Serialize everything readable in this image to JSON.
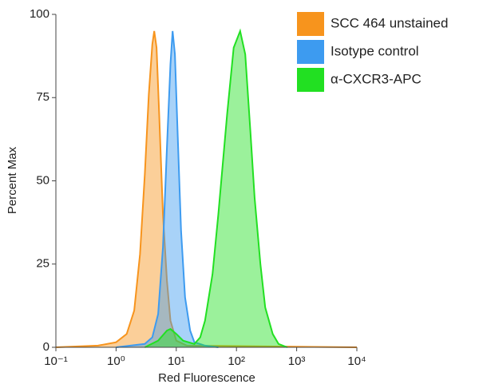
{
  "chart_data": {
    "type": "area",
    "x_label": "Red Fluorescence",
    "y_label": "Percent Max",
    "log_x": true,
    "xlim": [
      0.1,
      10000
    ],
    "xticks": [
      {
        "value": 0.1,
        "label": "10⁻¹"
      },
      {
        "value": 1,
        "label": "10⁰"
      },
      {
        "value": 10,
        "label": "10¹"
      },
      {
        "value": 100,
        "label": "10²"
      },
      {
        "value": 1000,
        "label": "10³"
      },
      {
        "value": 10000,
        "label": "10⁴"
      }
    ],
    "ylim": [
      0,
      100
    ],
    "yticks": [
      0,
      25,
      50,
      75,
      100
    ],
    "legend": "top-right",
    "series": [
      {
        "name": "SCC 464 unstained",
        "color": "#f7941d",
        "x": [
          0.1,
          0.5,
          1,
          1.5,
          2,
          2.5,
          3,
          3.5,
          4,
          4.3,
          4.7,
          5.2,
          6,
          7,
          8,
          10,
          15,
          10000
        ],
        "values": [
          0,
          0.5,
          1.5,
          4,
          11,
          28,
          52,
          76,
          91,
          95,
          90,
          70,
          40,
          20,
          8,
          2,
          0.5,
          0
        ]
      },
      {
        "name": "Isotype control",
        "color": "#3d9bf0",
        "x": [
          1,
          3,
          4,
          5,
          6,
          7,
          8,
          8.7,
          9.5,
          10.5,
          12,
          14,
          17,
          20,
          30,
          50
        ],
        "values": [
          0,
          1,
          3,
          10,
          30,
          60,
          85,
          95,
          88,
          65,
          35,
          15,
          5,
          1.5,
          0.5,
          0
        ]
      },
      {
        "name": "α-CXCR3-APC",
        "color": "#22e022",
        "x": [
          3,
          5,
          7,
          8,
          10,
          13,
          20,
          25,
          30,
          40,
          50,
          70,
          90,
          115,
          140,
          170,
          200,
          250,
          300,
          400,
          500,
          700
        ],
        "values": [
          0,
          2,
          5,
          5.5,
          4,
          2,
          1,
          3,
          8,
          22,
          40,
          70,
          90,
          95,
          88,
          65,
          45,
          25,
          12,
          4,
          1,
          0
        ]
      }
    ]
  }
}
